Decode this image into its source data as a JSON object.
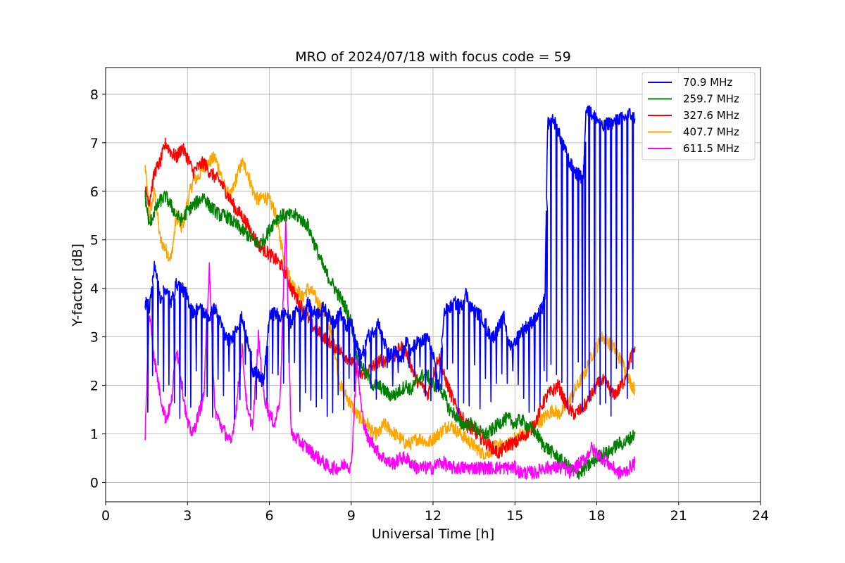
{
  "chart_data": {
    "type": "line",
    "title": "MRO of 2024/07/18 with focus code = 59",
    "xlabel": "Universal Time [h]",
    "ylabel": "Y-factor [dB]",
    "xlim": [
      0,
      24
    ],
    "ylim": [
      -0.4,
      8.55
    ],
    "xticks": [
      0,
      3,
      6,
      9,
      12,
      15,
      18,
      21,
      24
    ],
    "yticks": [
      0,
      1,
      2,
      3,
      4,
      5,
      6,
      7,
      8
    ],
    "grid": true,
    "legend_position": "top-right",
    "series": [
      {
        "name": " 70.9 MHz",
        "color": "#0000ff",
        "x": [
          1.45,
          1.6,
          1.8,
          2.0,
          2.2,
          2.4,
          2.6,
          2.8,
          3.0,
          3.2,
          3.4,
          3.6,
          3.8,
          4.0,
          4.2,
          4.4,
          4.6,
          4.8,
          5.0,
          5.2,
          5.4,
          5.6,
          5.8,
          6.0,
          6.2,
          6.4,
          6.6,
          6.8,
          7.0,
          7.2,
          7.4,
          7.6,
          7.8,
          8.0,
          8.2,
          8.4,
          8.6,
          8.8,
          9.0,
          9.2,
          9.4,
          9.6,
          9.8,
          10.0,
          10.2,
          10.4,
          10.6,
          10.8,
          11.0,
          11.2,
          11.4,
          11.6,
          11.8,
          12.0,
          12.2,
          12.4,
          12.6,
          12.8,
          13.0,
          13.2,
          13.4,
          13.6,
          13.8,
          14.0,
          14.2,
          14.4,
          14.6,
          14.8,
          15.0,
          15.2,
          15.4,
          15.6,
          15.8,
          16.0,
          16.1,
          16.2,
          16.4,
          16.6,
          16.8,
          17.0,
          17.2,
          17.4,
          17.5,
          17.6,
          17.8,
          18.0,
          18.2,
          18.4,
          18.6,
          18.8,
          19.0,
          19.2,
          19.4
        ],
        "y": [
          3.7,
          3.6,
          4.5,
          3.8,
          4.0,
          3.7,
          4.1,
          4.0,
          3.8,
          3.5,
          3.6,
          3.5,
          3.4,
          3.6,
          3.3,
          3.0,
          2.9,
          3.2,
          3.4,
          2.9,
          2.3,
          2.2,
          2.1,
          3.4,
          3.5,
          3.4,
          3.5,
          3.3,
          3.6,
          3.4,
          3.7,
          3.5,
          3.5,
          3.6,
          3.4,
          3.3,
          3.5,
          3.2,
          3.3,
          2.8,
          2.6,
          3.0,
          3.1,
          3.3,
          2.9,
          2.6,
          2.7,
          2.5,
          2.9,
          2.7,
          2.9,
          2.9,
          3.0,
          2.6,
          1.9,
          3.5,
          3.6,
          3.7,
          3.6,
          3.9,
          3.6,
          3.5,
          3.4,
          3.1,
          3.0,
          3.2,
          3.4,
          2.8,
          2.9,
          3.1,
          3.2,
          3.3,
          3.4,
          3.6,
          3.8,
          7.4,
          7.5,
          7.2,
          6.9,
          6.6,
          6.4,
          6.3,
          6.2,
          7.7,
          7.6,
          7.5,
          7.3,
          7.4,
          7.4,
          7.5,
          7.5,
          7.6,
          7.5
        ],
        "spikes_to": 1.3
      },
      {
        "name": "259.7 MHz",
        "color": "#008000",
        "x": [
          1.45,
          1.6,
          1.8,
          2.0,
          2.2,
          2.4,
          2.6,
          2.8,
          3.0,
          3.2,
          3.4,
          3.6,
          3.8,
          4.0,
          4.2,
          4.4,
          4.6,
          4.8,
          5.0,
          5.2,
          5.4,
          5.6,
          5.8,
          6.0,
          6.2,
          6.4,
          6.6,
          6.8,
          7.0,
          7.2,
          7.4,
          7.6,
          7.8,
          8.0,
          8.2,
          8.4,
          8.6,
          8.8,
          9.0,
          9.2,
          9.4,
          9.6,
          9.8,
          10.0,
          10.2,
          10.4,
          10.6,
          10.8,
          11.0,
          11.2,
          11.4,
          11.6,
          11.8,
          12.0,
          12.2,
          12.4,
          12.6,
          12.8,
          13.0,
          13.2,
          13.4,
          13.6,
          13.8,
          14.0,
          14.2,
          14.4,
          14.6,
          14.8,
          15.0,
          15.2,
          15.4,
          15.6,
          15.8,
          16.0,
          16.2,
          16.4,
          16.6,
          16.8,
          17.0,
          17.2,
          17.4,
          17.6,
          17.8,
          18.0,
          18.2,
          18.4,
          18.6,
          18.8,
          19.0,
          19.2,
          19.4
        ],
        "y": [
          5.9,
          5.3,
          5.6,
          5.8,
          5.9,
          5.7,
          5.5,
          5.4,
          5.6,
          5.7,
          5.8,
          5.9,
          5.7,
          5.6,
          5.5,
          5.5,
          5.4,
          5.3,
          5.2,
          5.1,
          5.0,
          4.9,
          5.0,
          5.2,
          5.4,
          5.5,
          5.5,
          5.5,
          5.5,
          5.4,
          5.3,
          5.0,
          4.7,
          4.4,
          4.2,
          4.0,
          3.8,
          3.6,
          3.3,
          2.6,
          2.4,
          2.2,
          2.0,
          2.0,
          1.9,
          1.8,
          1.8,
          1.9,
          2.0,
          1.9,
          2.1,
          2.2,
          2.2,
          2.0,
          2.0,
          1.8,
          1.5,
          1.4,
          1.2,
          1.2,
          1.2,
          1.1,
          1.0,
          1.0,
          1.1,
          1.2,
          1.3,
          1.3,
          1.2,
          1.3,
          1.2,
          1.1,
          1.0,
          0.8,
          0.7,
          0.6,
          0.5,
          0.4,
          0.3,
          0.2,
          0.2,
          0.3,
          0.4,
          0.5,
          0.6,
          0.6,
          0.7,
          0.8,
          0.8,
          0.9,
          1.0
        ],
        "spikes_to": null
      },
      {
        "name": "327.6 MHz",
        "color": "#ff0000",
        "x": [
          1.45,
          1.6,
          1.8,
          2.0,
          2.2,
          2.4,
          2.6,
          2.8,
          3.0,
          3.2,
          3.4,
          3.6,
          3.8,
          4.0,
          4.2,
          4.4,
          4.6,
          4.8,
          5.0,
          5.2,
          5.4,
          5.6,
          5.8,
          6.0,
          6.2,
          6.4,
          6.6,
          6.8,
          7.0,
          7.2,
          7.4,
          7.6,
          7.8,
          8.0,
          8.2,
          8.4,
          8.6,
          8.8,
          9.0,
          9.2,
          9.4,
          9.6,
          9.8,
          10.0,
          10.2,
          10.4,
          10.6,
          10.8,
          11.0,
          11.2,
          11.4,
          11.6,
          11.8,
          12.0,
          12.2,
          12.4,
          12.6,
          12.8,
          13.0,
          13.2,
          13.4,
          13.6,
          13.8,
          14.0,
          14.2,
          14.4,
          14.6,
          14.8,
          15.0,
          15.2,
          15.4,
          15.6,
          15.8,
          16.0,
          16.2,
          16.4,
          16.6,
          16.8,
          17.0,
          17.2,
          17.4,
          17.6,
          17.8,
          18.0,
          18.2,
          18.4,
          18.6,
          18.8,
          19.0,
          19.2,
          19.4
        ],
        "y": [
          6.0,
          5.8,
          6.4,
          6.6,
          7.0,
          6.8,
          6.7,
          6.9,
          6.7,
          6.4,
          6.5,
          6.6,
          6.4,
          6.3,
          6.2,
          6.0,
          5.8,
          5.6,
          5.5,
          5.3,
          5.1,
          4.9,
          4.8,
          4.7,
          4.6,
          4.5,
          4.3,
          4.0,
          3.8,
          3.6,
          3.4,
          3.2,
          3.1,
          3.0,
          2.9,
          2.8,
          2.7,
          2.6,
          2.5,
          2.3,
          2.2,
          2.3,
          2.4,
          2.5,
          2.5,
          2.6,
          2.6,
          2.8,
          2.7,
          2.4,
          2.1,
          2.0,
          1.8,
          2.2,
          2.6,
          2.2,
          1.9,
          1.6,
          1.4,
          1.2,
          1.1,
          1.0,
          0.9,
          0.8,
          0.7,
          0.6,
          0.7,
          0.8,
          0.8,
          0.9,
          1.0,
          1.1,
          1.3,
          1.6,
          1.8,
          1.9,
          2.0,
          1.7,
          1.5,
          1.4,
          1.5,
          1.6,
          1.8,
          2.0,
          2.1,
          2.0,
          1.8,
          1.9,
          2.1,
          2.5,
          2.8
        ],
        "spikes_to": null
      },
      {
        "name": "407.7 MHz",
        "color": "#ffa500",
        "x": [
          1.45,
          1.6,
          1.8,
          2.0,
          2.2,
          2.4,
          2.6,
          2.8,
          3.0,
          3.2,
          3.4,
          3.6,
          3.8,
          4.0,
          4.2,
          4.4,
          4.6,
          4.8,
          5.0,
          5.2,
          5.4,
          5.6,
          5.8,
          6.0,
          6.2,
          6.4,
          6.6,
          6.8,
          7.0,
          7.2,
          7.4,
          7.6,
          7.8,
          8.0,
          8.2,
          8.4,
          8.6,
          8.8,
          9.0,
          9.2,
          9.4,
          9.6,
          9.8,
          10.0,
          10.2,
          10.4,
          10.6,
          10.8,
          11.0,
          11.2,
          11.4,
          11.6,
          11.8,
          12.0,
          12.2,
          12.4,
          12.6,
          12.8,
          13.0,
          13.2,
          13.4,
          13.6,
          13.8,
          14.0,
          14.2,
          14.4,
          14.6,
          14.8,
          15.0,
          15.2,
          15.4,
          15.6,
          15.8,
          16.0,
          16.2,
          16.4,
          16.6,
          16.8,
          17.0,
          17.2,
          17.4,
          17.6,
          17.8,
          18.0,
          18.2,
          18.4,
          18.6,
          18.8,
          19.0,
          19.2,
          19.4
        ],
        "y": [
          6.5,
          5.5,
          6.0,
          5.0,
          4.8,
          4.6,
          5.5,
          5.2,
          5.8,
          6.2,
          6.3,
          6.5,
          6.6,
          6.7,
          6.4,
          6.0,
          5.9,
          6.3,
          6.6,
          6.4,
          6.0,
          5.8,
          5.9,
          5.8,
          5.6,
          5.0,
          4.5,
          4.1,
          4.0,
          3.8,
          4.0,
          3.9,
          3.7,
          3.5,
          3.2,
          2.7,
          2.0,
          1.8,
          1.6,
          1.4,
          1.3,
          1.2,
          1.0,
          1.0,
          1.2,
          1.1,
          1.0,
          0.9,
          0.8,
          0.8,
          0.9,
          0.9,
          0.8,
          0.9,
          1.0,
          1.1,
          1.2,
          1.1,
          1.0,
          0.9,
          0.8,
          0.7,
          0.6,
          0.6,
          0.7,
          0.8,
          0.7,
          0.8,
          0.9,
          1.0,
          1.0,
          1.1,
          1.2,
          1.3,
          1.4,
          1.5,
          1.4,
          1.5,
          1.7,
          1.9,
          2.1,
          2.3,
          2.6,
          2.8,
          3.0,
          2.9,
          2.8,
          2.6,
          2.4,
          2.1,
          1.9
        ],
        "spikes_to": null
      },
      {
        "name": "611.5 MHz",
        "color": "#ff00ff",
        "x": [
          1.45,
          1.6,
          1.8,
          2.0,
          2.2,
          2.4,
          2.6,
          2.8,
          3.0,
          3.2,
          3.4,
          3.6,
          3.8,
          4.0,
          4.2,
          4.4,
          4.6,
          4.8,
          5.0,
          5.2,
          5.4,
          5.6,
          5.8,
          6.0,
          6.2,
          6.4,
          6.6,
          6.8,
          7.0,
          7.2,
          7.4,
          7.6,
          7.8,
          8.0,
          8.2,
          8.4,
          8.6,
          8.8,
          9.0,
          9.2,
          9.4,
          9.6,
          9.8,
          10.0,
          10.2,
          10.4,
          10.6,
          10.8,
          11.0,
          11.2,
          11.4,
          11.6,
          11.8,
          12.0,
          12.2,
          12.4,
          12.6,
          12.8,
          13.0,
          13.2,
          13.4,
          13.6,
          13.8,
          14.0,
          14.2,
          14.4,
          14.6,
          14.8,
          15.0,
          15.2,
          15.4,
          15.6,
          15.8,
          16.0,
          16.2,
          16.4,
          16.6,
          16.8,
          17.0,
          17.2,
          17.4,
          17.6,
          17.8,
          18.0,
          18.2,
          18.4,
          18.6,
          18.8,
          19.0,
          19.2,
          19.4
        ],
        "y": [
          1.0,
          3.5,
          2.5,
          1.8,
          1.3,
          1.6,
          2.8,
          2.0,
          1.2,
          1.0,
          1.4,
          1.8,
          4.5,
          1.5,
          1.2,
          1.0,
          0.8,
          1.6,
          2.8,
          1.4,
          1.2,
          3.0,
          1.8,
          1.4,
          1.2,
          1.8,
          5.4,
          1.0,
          0.9,
          0.8,
          0.7,
          0.6,
          0.5,
          0.4,
          0.3,
          0.3,
          0.3,
          0.4,
          0.3,
          2.5,
          1.4,
          0.9,
          0.8,
          0.6,
          0.5,
          0.4,
          0.4,
          0.5,
          0.5,
          0.4,
          0.3,
          0.3,
          0.3,
          0.3,
          0.4,
          0.4,
          0.3,
          0.3,
          0.3,
          0.3,
          0.3,
          0.3,
          0.3,
          0.3,
          0.3,
          0.3,
          0.3,
          0.3,
          0.3,
          0.2,
          0.2,
          0.2,
          0.2,
          0.3,
          0.3,
          0.3,
          0.3,
          0.3,
          0.2,
          0.3,
          0.4,
          0.5,
          0.7,
          0.6,
          0.5,
          0.4,
          0.3,
          0.2,
          0.2,
          0.3,
          0.4
        ],
        "spikes_to": null
      }
    ]
  }
}
